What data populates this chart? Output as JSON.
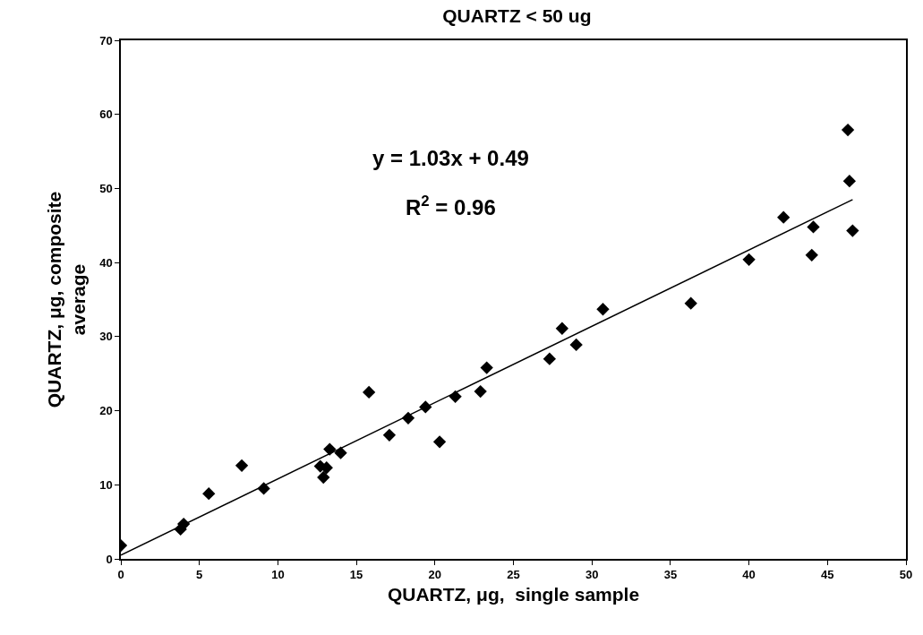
{
  "chart_data": {
    "type": "scatter",
    "title": "QUARTZ < 50 ug",
    "xlabel": "QUARTZ, μg,  single sample",
    "ylabel": "QUARTZ, μg, composite\naverage",
    "series": [
      {
        "color": "#000000",
        "marker": "diamond",
        "x": [
          0,
          3.8,
          4,
          5.6,
          7.7,
          9.1,
          12.7,
          12.9,
          13.1,
          13.3,
          14,
          15.8,
          17.1,
          18.3,
          19.4,
          20.3,
          21.3,
          22.9,
          23.3,
          27.3,
          28.1,
          29,
          30.7,
          36.3,
          40,
          42.2,
          44,
          44.1,
          46.3,
          46.4,
          46.6
        ],
        "values": [
          1.8,
          4,
          4.7,
          8.8,
          12.6,
          9.5,
          12.5,
          11,
          12.3,
          14.8,
          14.3,
          22.5,
          16.7,
          19,
          20.5,
          15.8,
          21.9,
          22.6,
          25.8,
          27,
          31.1,
          28.9,
          33.7,
          34.5,
          40.4,
          46.1,
          41,
          44.8,
          57.9,
          51,
          44.3
        ]
      },
      {
        "type": "line",
        "color": "#000000",
        "marker": "none",
        "line_style": "solid",
        "x": [
          0,
          46.6
        ],
        "values": [
          0.5,
          48.5
        ]
      }
    ],
    "annotations": [
      "y = 1.03x + 0.49",
      "R$^{2}$ = 0.96"
    ],
    "xlim": [
      0,
      50
    ],
    "xticks": [
      0,
      5,
      10,
      15,
      20,
      25,
      30,
      35,
      40,
      45,
      50
    ],
    "ylim": [
      0,
      70
    ],
    "yticks": [
      0,
      10,
      20,
      30,
      40,
      50,
      60,
      70
    ]
  }
}
